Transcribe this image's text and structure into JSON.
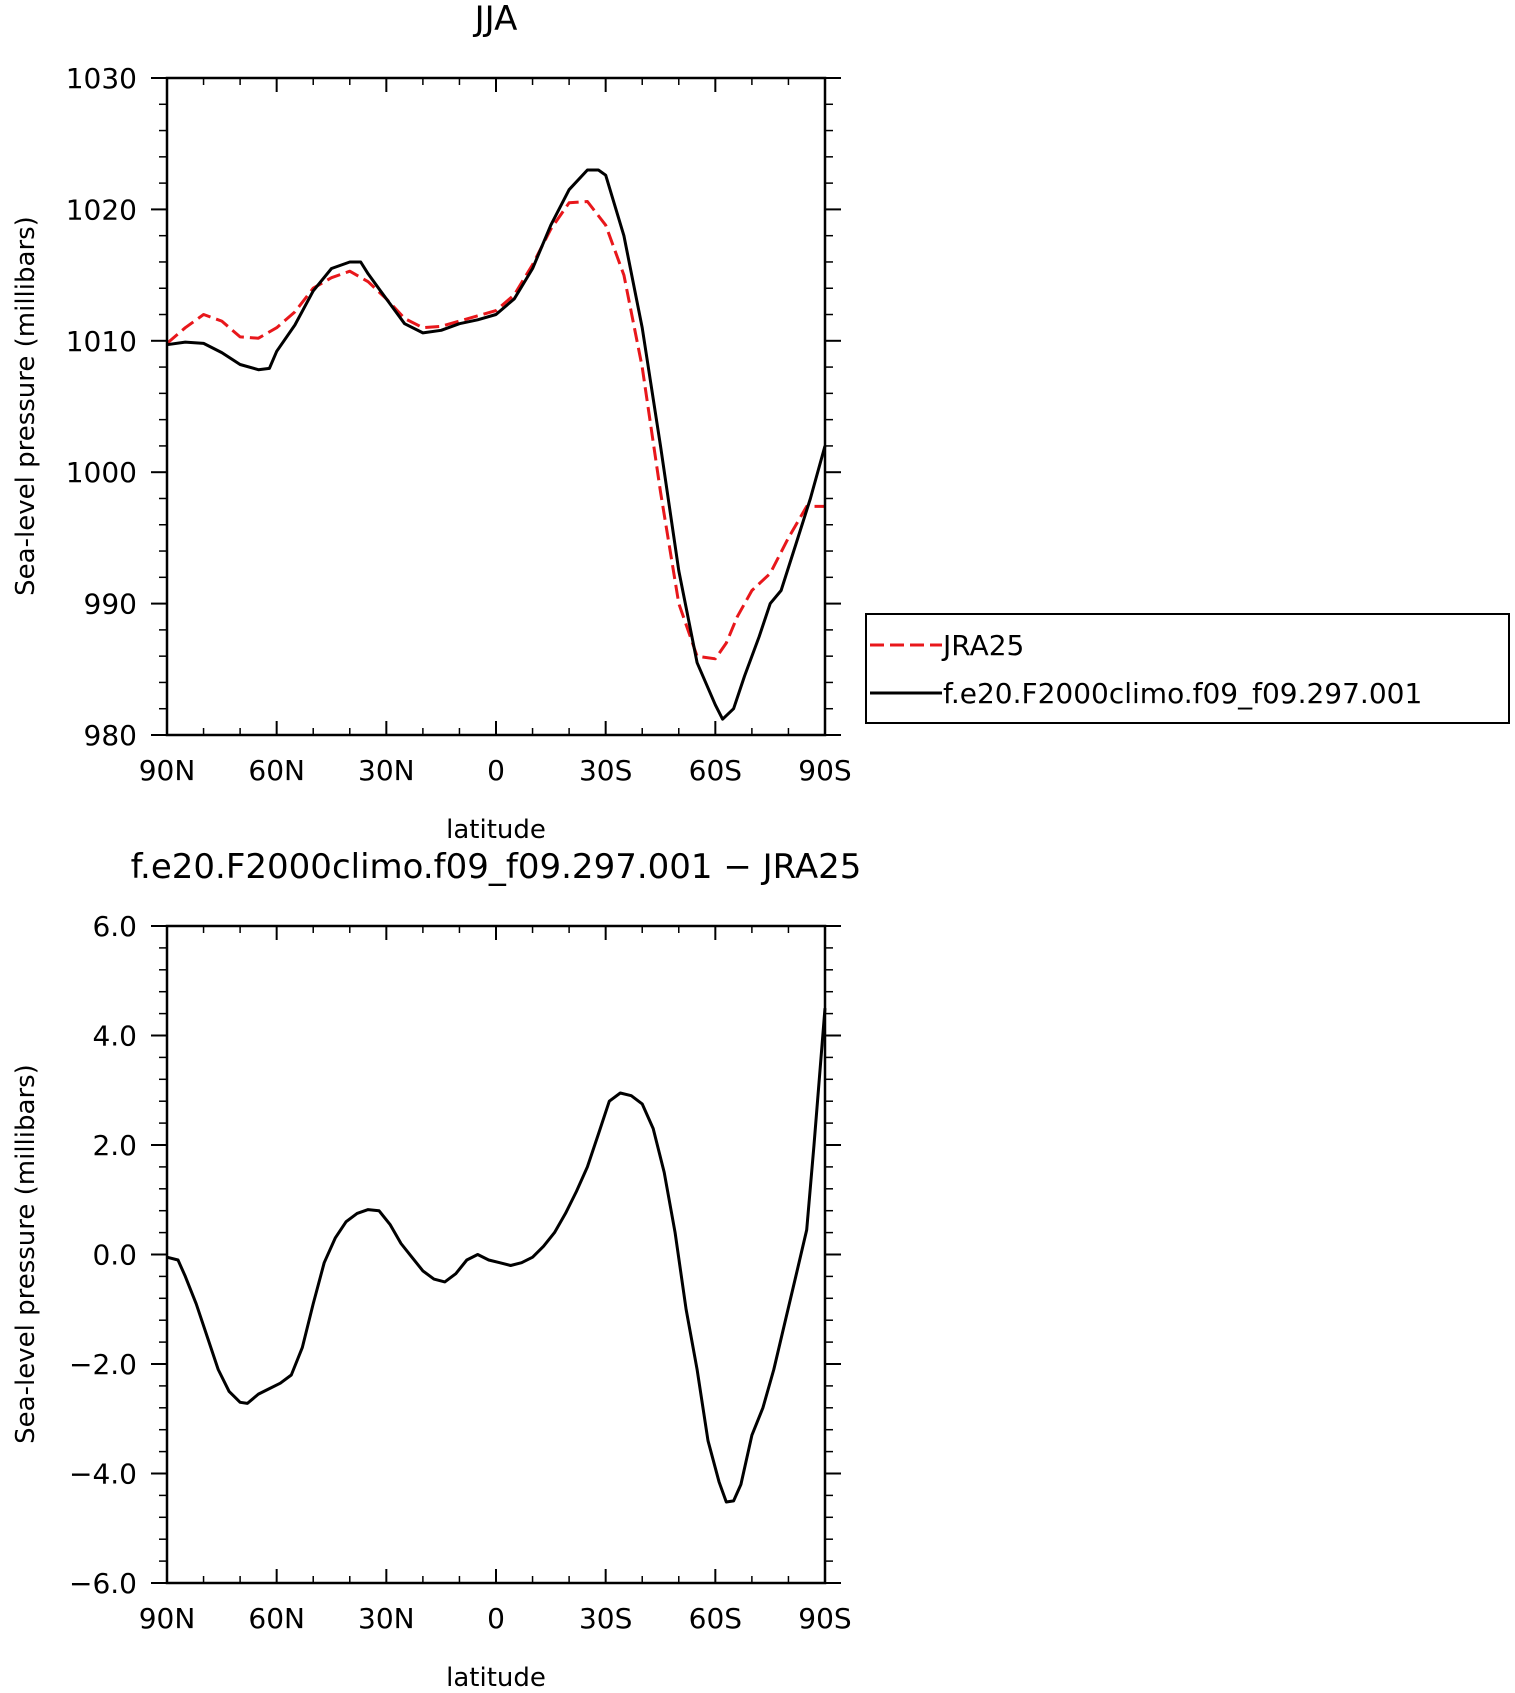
{
  "chart_data": [
    {
      "type": "line",
      "title": "JJA",
      "xlabel": "latitude",
      "ylabel": "Sea-level pressure (millibars)",
      "xlim": [
        90,
        -90
      ],
      "ylim": [
        980,
        1030
      ],
      "xticks": [
        90,
        60,
        30,
        0,
        -30,
        -60,
        -90
      ],
      "xtick_labels": [
        "90N",
        "60N",
        "30N",
        "0",
        "30S",
        "60S",
        "90S"
      ],
      "yticks": [
        980,
        990,
        1000,
        1010,
        1020,
        1030
      ],
      "ytick_labels": [
        "980",
        "990",
        "1000",
        "1010",
        "1020",
        "1030"
      ],
      "legend_position": "right",
      "series": [
        {
          "name": "JRA25",
          "color": "#e8171b",
          "style": "dashed",
          "x": [
            90,
            85,
            80,
            75,
            70,
            65,
            60,
            55,
            50,
            45,
            40,
            35,
            30,
            25,
            20,
            15,
            10,
            5,
            0,
            -5,
            -10,
            -15,
            -20,
            -25,
            -30,
            -35,
            -40,
            -45,
            -50,
            -55,
            -60,
            -63,
            -66,
            -70,
            -75,
            -80,
            -85,
            -90
          ],
          "y": [
            1009.8,
            1011,
            1012,
            1011.5,
            1010.3,
            1010.2,
            1011,
            1012.2,
            1014,
            1014.8,
            1015.3,
            1014.5,
            1013.2,
            1011.7,
            1011,
            1011.1,
            1011.5,
            1011.9,
            1012.3,
            1013.5,
            1015.8,
            1018.5,
            1020.5,
            1020.6,
            1018.8,
            1015,
            1008,
            998.5,
            990,
            986,
            985.8,
            987,
            989,
            991,
            992.3,
            995,
            997.4,
            997.4
          ]
        },
        {
          "name": "f.e20.F2000climo.f09_f09.297.001",
          "color": "#000000",
          "style": "solid",
          "x": [
            90,
            85,
            80,
            75,
            70,
            65,
            62,
            60,
            55,
            50,
            45,
            40,
            37,
            35,
            30,
            25,
            20,
            15,
            10,
            5,
            0,
            -5,
            -10,
            -15,
            -20,
            -25,
            -28,
            -30,
            -35,
            -40,
            -45,
            -50,
            -55,
            -60,
            -62,
            -65,
            -68,
            -72,
            -75,
            -78,
            -82,
            -86,
            -90
          ],
          "y": [
            1009.7,
            1009.9,
            1009.8,
            1009.1,
            1008.2,
            1007.8,
            1007.9,
            1009.2,
            1011.2,
            1013.8,
            1015.5,
            1016,
            1016,
            1015.1,
            1013.2,
            1011.3,
            1010.6,
            1010.8,
            1011.3,
            1011.6,
            1012,
            1013.2,
            1015.5,
            1018.8,
            1021.5,
            1023,
            1023,
            1022.6,
            1018,
            1011,
            1002,
            992.5,
            985.5,
            982.3,
            981.2,
            982,
            984.5,
            987.5,
            990,
            991,
            994.5,
            998,
            1002
          ]
        }
      ]
    },
    {
      "type": "line",
      "title": "f.e20.F2000climo.f09_f09.297.001 − JRA25",
      "xlabel": "latitude",
      "ylabel": "Sea-level pressure (millibars)",
      "xlim": [
        90,
        -90
      ],
      "ylim": [
        -6,
        6
      ],
      "xticks": [
        90,
        60,
        30,
        0,
        -30,
        -60,
        -90
      ],
      "xtick_labels": [
        "90N",
        "60N",
        "30N",
        "0",
        "30S",
        "60S",
        "90S"
      ],
      "yticks": [
        -6,
        -4,
        -2,
        0,
        2,
        4,
        6
      ],
      "ytick_labels": [
        "−6.0",
        "−4.0",
        "−2.0",
        "0.0",
        "2.0",
        "4.0",
        "6.0"
      ],
      "series": [
        {
          "color": "#000000",
          "style": "solid",
          "x": [
            90,
            87,
            85,
            82,
            79,
            76,
            73,
            70,
            68,
            65,
            62,
            59,
            56,
            53,
            50,
            47,
            44,
            41,
            38,
            35,
            32,
            29,
            26,
            23,
            20,
            17,
            14,
            11,
            8,
            5,
            2,
            -1,
            -4,
            -7,
            -10,
            -13,
            -16,
            -19,
            -22,
            -25,
            -28,
            -31,
            -34,
            -37,
            -40,
            -43,
            -46,
            -49,
            -52,
            -55,
            -58,
            -61,
            -63,
            -65,
            -67,
            -70,
            -73,
            -76,
            -79,
            -82,
            -85,
            -87,
            -90
          ],
          "y": [
            -0.05,
            -0.1,
            -0.4,
            -0.9,
            -1.5,
            -2.1,
            -2.5,
            -2.7,
            -2.72,
            -2.55,
            -2.45,
            -2.35,
            -2.2,
            -1.7,
            -0.9,
            -0.15,
            0.3,
            0.6,
            0.75,
            0.82,
            0.8,
            0.55,
            0.2,
            -0.05,
            -0.3,
            -0.45,
            -0.5,
            -0.35,
            -0.1,
            0.0,
            -0.1,
            -0.15,
            -0.2,
            -0.15,
            -0.05,
            0.15,
            0.4,
            0.75,
            1.15,
            1.6,
            2.2,
            2.8,
            2.95,
            2.9,
            2.75,
            2.3,
            1.5,
            0.4,
            -1.0,
            -2.1,
            -3.4,
            -4.15,
            -4.52,
            -4.5,
            -4.2,
            -3.3,
            -2.8,
            -2.1,
            -1.25,
            -0.4,
            0.45,
            2.0,
            4.5
          ]
        }
      ]
    }
  ],
  "legend": {
    "items": [
      {
        "label": "JRA25",
        "color": "#e8171b",
        "style": "dashed"
      },
      {
        "label": "f.e20.F2000climo.f09_f09.297.001",
        "color": "#000000",
        "style": "solid"
      }
    ]
  }
}
